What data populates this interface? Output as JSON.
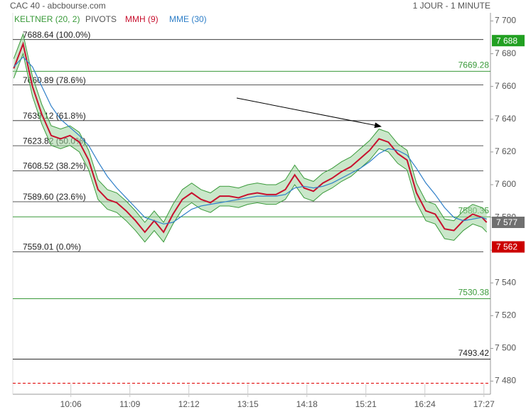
{
  "chart_data": {
    "type": "line",
    "title": "CAC 40 - abcbourse.com",
    "subtitle": "1 JOUR - 1 MINUTE",
    "x": [
      "09:05",
      "09:15",
      "09:25",
      "09:35",
      "09:45",
      "09:55",
      "10:05",
      "10:15",
      "10:25",
      "10:35",
      "10:45",
      "10:55",
      "11:05",
      "11:15",
      "11:25",
      "11:35",
      "11:45",
      "11:55",
      "12:05",
      "12:15",
      "12:25",
      "12:35",
      "12:45",
      "12:55",
      "13:05",
      "13:15",
      "13:25",
      "13:35",
      "13:45",
      "13:55",
      "14:05",
      "14:15",
      "14:25",
      "14:35",
      "14:45",
      "14:55",
      "15:05",
      "15:15",
      "15:25",
      "15:35",
      "15:45",
      "15:55",
      "16:05",
      "16:15",
      "16:25",
      "16:35",
      "16:45",
      "16:55",
      "17:05",
      "17:15",
      "17:25",
      "17:30"
    ],
    "series": [
      {
        "name": "KELTNER (20, 2)",
        "color": "#3a9a3a",
        "upper": [
          7677,
          7692,
          7666,
          7649,
          7636,
          7634,
          7636,
          7632,
          7621,
          7603,
          7597,
          7595,
          7590,
          7584,
          7577,
          7584,
          7577,
          7588,
          7597,
          7601,
          7597,
          7595,
          7599,
          7599,
          7598,
          7600,
          7601,
          7600,
          7600,
          7603,
          7612,
          7604,
          7602,
          7607,
          7610,
          7614,
          7617,
          7622,
          7627,
          7634,
          7632,
          7625,
          7621,
          7601,
          7590,
          7588,
          7579,
          7578,
          7584,
          7588,
          7586,
          7583
        ],
        "lower": [
          7665,
          7680,
          7654,
          7637,
          7624,
          7622,
          7624,
          7620,
          7609,
          7591,
          7585,
          7583,
          7578,
          7572,
          7565,
          7572,
          7565,
          7576,
          7585,
          7589,
          7585,
          7583,
          7587,
          7587,
          7586,
          7588,
          7589,
          7588,
          7588,
          7591,
          7600,
          7592,
          7590,
          7595,
          7598,
          7602,
          7605,
          7610,
          7615,
          7622,
          7620,
          7613,
          7609,
          7589,
          7578,
          7576,
          7567,
          7566,
          7572,
          7576,
          7574,
          7571
        ]
      },
      {
        "name": "MMH (9)",
        "color": "#c8102e",
        "values": [
          7671,
          7686,
          7660,
          7643,
          7630,
          7628,
          7630,
          7626,
          7615,
          7597,
          7591,
          7589,
          7584,
          7578,
          7571,
          7578,
          7571,
          7582,
          7591,
          7595,
          7591,
          7589,
          7593,
          7593,
          7592,
          7594,
          7595,
          7594,
          7594,
          7597,
          7606,
          7598,
          7596,
          7601,
          7604,
          7608,
          7611,
          7616,
          7621,
          7628,
          7626,
          7619,
          7615,
          7595,
          7584,
          7582,
          7573,
          7572,
          7578,
          7582,
          7580,
          7577
        ]
      },
      {
        "name": "MME (30)",
        "color": "#2f7fc8",
        "values": [
          7672,
          7678,
          7672,
          7660,
          7648,
          7640,
          7635,
          7630,
          7624,
          7614,
          7605,
          7598,
          7592,
          7586,
          7580,
          7578,
          7576,
          7577,
          7581,
          7585,
          7587,
          7588,
          7589,
          7590,
          7591,
          7592,
          7593,
          7593,
          7593,
          7594,
          7598,
          7599,
          7598,
          7599,
          7601,
          7604,
          7607,
          7610,
          7614,
          7619,
          7622,
          7621,
          7618,
          7610,
          7601,
          7594,
          7586,
          7580,
          7578,
          7579,
          7580,
          7579
        ]
      }
    ],
    "pivots": {
      "name": "PIVOTS",
      "levels": [
        {
          "value": 7669.28,
          "label": "7669.28",
          "color": "#3a9a3a"
        },
        {
          "value": 7580.35,
          "label": "7580.35",
          "color": "#3a9a3a"
        },
        {
          "value": 7530.38,
          "label": "7530.38",
          "color": "#3a9a3a"
        },
        {
          "value": 7493.42,
          "label": "7493.42",
          "color": "#222222"
        }
      ]
    },
    "fibonacci": [
      {
        "value": 7688.64,
        "label": "7688.64  (100.0%)"
      },
      {
        "value": 7660.89,
        "label": "7660.89  (78.6%)"
      },
      {
        "value": 7639.12,
        "label": "7639.12  (61.8%)"
      },
      {
        "value": 7623.82,
        "label": "7623.82  (50.0%)"
      },
      {
        "value": 7608.52,
        "label": "7608.52  (38.2%)"
      },
      {
        "value": 7589.6,
        "label": "7589.60  (23.6%)"
      },
      {
        "value": 7559.01,
        "label": "7559.01  (0.0%)"
      }
    ],
    "alert_line": {
      "value": 7478.7,
      "color": "#e00000"
    },
    "price_tags": [
      {
        "value": 7688,
        "label": "7 688",
        "color": "#22a022"
      },
      {
        "value": 7577,
        "label": "7 577",
        "color": "#707070"
      },
      {
        "value": 7562,
        "label": "7 562",
        "color": "#cc0000"
      }
    ],
    "xlim": [
      "09:04",
      "17:34"
    ],
    "xticks": [
      "10:06",
      "11:09",
      "12:12",
      "13:15",
      "14:18",
      "15:21",
      "16:24",
      "17:27"
    ],
    "ylim": [
      7472,
      7705
    ],
    "yticks": [
      {
        "value": 7480,
        "label": "7 480"
      },
      {
        "value": 7500,
        "label": "7 500"
      },
      {
        "value": 7520,
        "label": "7 520"
      },
      {
        "value": 7540,
        "label": "7 540"
      },
      {
        "value": 7560,
        "label": "7 560"
      },
      {
        "value": 7580,
        "label": "7 580"
      },
      {
        "value": 7600,
        "label": "7 600"
      },
      {
        "value": 7620,
        "label": "7 620"
      },
      {
        "value": 7640,
        "label": "7 640"
      },
      {
        "value": 7660,
        "label": "7 660"
      },
      {
        "value": 7680,
        "label": "7 680"
      },
      {
        "value": 7700,
        "label": "7 700"
      }
    ]
  }
}
